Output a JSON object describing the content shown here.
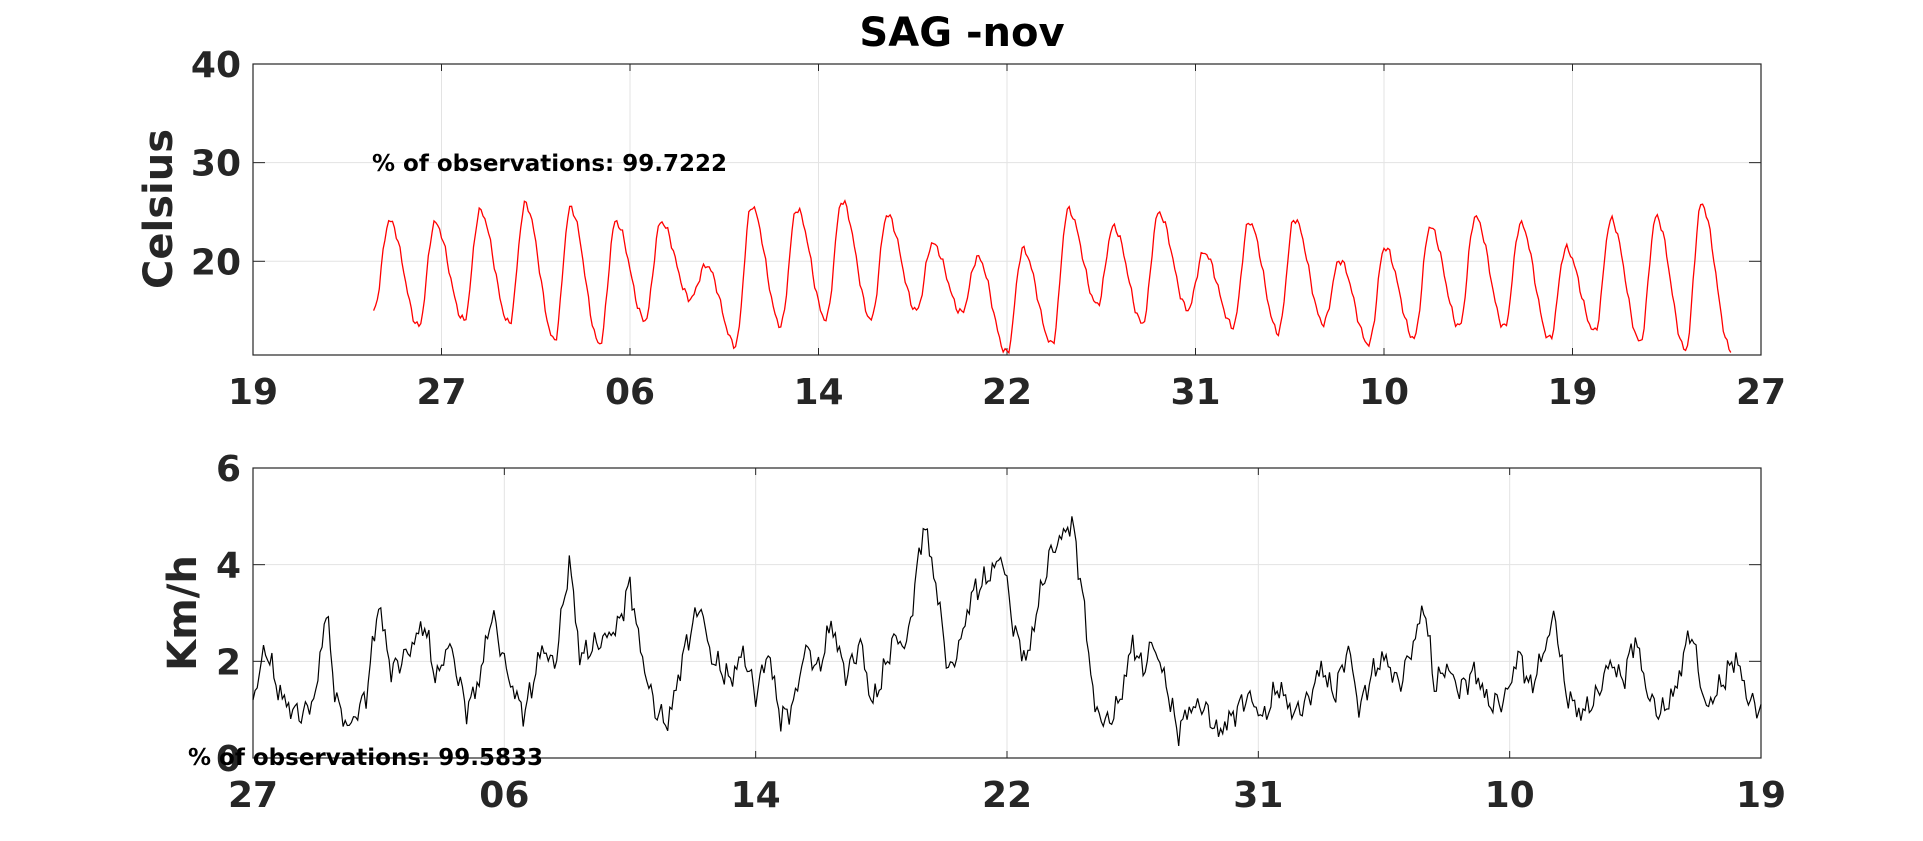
{
  "chart_data": [
    {
      "type": "line",
      "title": "SAG -nov",
      "ylabel": "Celsius",
      "xlabel": "",
      "xlim": [
        0,
        8
      ],
      "ylim": [
        10.5,
        40
      ],
      "x_ticks": [
        {
          "x": 0,
          "label": "19"
        },
        {
          "x": 1,
          "label": "27"
        },
        {
          "x": 2,
          "label": "06"
        },
        {
          "x": 3,
          "label": "14"
        },
        {
          "x": 4,
          "label": "22"
        },
        {
          "x": 5,
          "label": "31"
        },
        {
          "x": 6,
          "label": "10"
        },
        {
          "x": 7,
          "label": "19"
        },
        {
          "x": 8,
          "label": "27"
        }
      ],
      "y_ticks": [
        20,
        30,
        40
      ],
      "grid": true,
      "color": "#ff0000",
      "annotation": "% of observations: 99.7222",
      "series": [
        {
          "x_start": 0.64,
          "x_end": 7.84,
          "points_per_day": 24,
          "daily_max": [
            24.1,
            23.9,
            25.1,
            25.8,
            25.4,
            24.0,
            24.0,
            19.6,
            25.6,
            25.3,
            26.1,
            24.7,
            21.8,
            20.4,
            21.2,
            25.2,
            23.5,
            24.9,
            20.9,
            24.0,
            24.3,
            20.1,
            21.4,
            23.5,
            24.5,
            23.8,
            21.3,
            24.2,
            24.5,
            25.8
          ],
          "daily_min": [
            15.0,
            13.4,
            14.0,
            13.7,
            12.0,
            11.6,
            14.0,
            16.2,
            11.5,
            13.5,
            14.1,
            14.1,
            15.0,
            14.8,
            10.7,
            11.6,
            15.6,
            13.7,
            15.1,
            13.4,
            12.8,
            13.7,
            11.6,
            12.2,
            13.4,
            13.3,
            12.1,
            12.9,
            11.8,
            11.0
          ]
        }
      ]
    },
    {
      "type": "line",
      "title": "",
      "ylabel": "Km/h",
      "xlabel": "",
      "xlim": [
        0,
        6
      ],
      "ylim": [
        0,
        6
      ],
      "x_ticks": [
        {
          "x": 0,
          "label": "27"
        },
        {
          "x": 1,
          "label": "06"
        },
        {
          "x": 2,
          "label": "14"
        },
        {
          "x": 3,
          "label": "22"
        },
        {
          "x": 4,
          "label": "31"
        },
        {
          "x": 5,
          "label": "10"
        },
        {
          "x": 6,
          "label": "19"
        }
      ],
      "y_ticks": [
        0,
        2,
        4,
        6
      ],
      "grid": true,
      "color": "#000000",
      "annotation": "% of observations: 99.5833",
      "series": [
        {
          "x_start": 0,
          "x_end": 6,
          "points_per_unit": 120,
          "key_points": [
            [
              0,
              1.2
            ],
            [
              0.05,
              2.3
            ],
            [
              0.1,
              1.4
            ],
            [
              0.15,
              1.0
            ],
            [
              0.2,
              0.9
            ],
            [
              0.25,
              1.3
            ],
            [
              0.29,
              3.1
            ],
            [
              0.33,
              1.2
            ],
            [
              0.38,
              0.6
            ],
            [
              0.45,
              1.3
            ],
            [
              0.5,
              3.2
            ],
            [
              0.55,
              1.8
            ],
            [
              0.62,
              2.2
            ],
            [
              0.68,
              2.8
            ],
            [
              0.73,
              1.6
            ],
            [
              0.78,
              2.4
            ],
            [
              0.85,
              1.0
            ],
            [
              0.9,
              1.6
            ],
            [
              0.95,
              3.0
            ],
            [
              1.02,
              1.6
            ],
            [
              1.08,
              0.9
            ],
            [
              1.15,
              2.3
            ],
            [
              1.2,
              1.9
            ],
            [
              1.26,
              4.1
            ],
            [
              1.3,
              2.1
            ],
            [
              1.38,
              2.4
            ],
            [
              1.45,
              2.7
            ],
            [
              1.5,
              3.6
            ],
            [
              1.55,
              2.0
            ],
            [
              1.6,
              1.0
            ],
            [
              1.65,
              0.7
            ],
            [
              1.72,
              2.3
            ],
            [
              1.78,
              3.2
            ],
            [
              1.82,
              2.1
            ],
            [
              1.9,
              1.6
            ],
            [
              1.95,
              2.2
            ],
            [
              2.0,
              1.3
            ],
            [
              2.05,
              2.2
            ],
            [
              2.1,
              0.8
            ],
            [
              2.15,
              1.1
            ],
            [
              2.2,
              2.3
            ],
            [
              2.25,
              1.8
            ],
            [
              2.3,
              2.8
            ],
            [
              2.36,
              1.7
            ],
            [
              2.42,
              2.4
            ],
            [
              2.46,
              1.1
            ],
            [
              2.5,
              1.6
            ],
            [
              2.55,
              2.5
            ],
            [
              2.6,
              2.3
            ],
            [
              2.67,
              4.9
            ],
            [
              2.72,
              3.5
            ],
            [
              2.77,
              1.7
            ],
            [
              2.82,
              2.5
            ],
            [
              2.86,
              3.4
            ],
            [
              2.92,
              3.7
            ],
            [
              2.98,
              4.2
            ],
            [
              3.03,
              2.6
            ],
            [
              3.08,
              2.0
            ],
            [
              3.12,
              3.1
            ],
            [
              3.17,
              4.2
            ],
            [
              3.22,
              4.6
            ],
            [
              3.26,
              4.9
            ],
            [
              3.3,
              3.4
            ],
            [
              3.35,
              1.0
            ],
            [
              3.4,
              0.7
            ],
            [
              3.45,
              1.2
            ],
            [
              3.5,
              2.4
            ],
            [
              3.54,
              1.8
            ],
            [
              3.58,
              2.4
            ],
            [
              3.63,
              1.6
            ],
            [
              3.68,
              0.5
            ],
            [
              3.72,
              1.0
            ],
            [
              3.78,
              1.1
            ],
            [
              3.84,
              0.5
            ],
            [
              3.9,
              0.9
            ],
            [
              3.96,
              1.3
            ],
            [
              4.02,
              0.8
            ],
            [
              4.08,
              1.5
            ],
            [
              4.14,
              0.9
            ],
            [
              4.2,
              1.2
            ],
            [
              4.25,
              1.9
            ],
            [
              4.3,
              1.3
            ],
            [
              4.36,
              2.3
            ],
            [
              4.4,
              1.0
            ],
            [
              4.45,
              1.7
            ],
            [
              4.5,
              2.1
            ],
            [
              4.56,
              1.5
            ],
            [
              4.62,
              2.4
            ],
            [
              4.66,
              3.2
            ],
            [
              4.7,
              1.5
            ],
            [
              4.75,
              1.9
            ],
            [
              4.8,
              1.4
            ],
            [
              4.86,
              1.8
            ],
            [
              4.92,
              1.1
            ],
            [
              4.98,
              1.2
            ],
            [
              5.04,
              2.2
            ],
            [
              5.08,
              1.4
            ],
            [
              5.13,
              2.1
            ],
            [
              5.18,
              3.0
            ],
            [
              5.22,
              1.4
            ],
            [
              5.28,
              0.9
            ],
            [
              5.34,
              1.2
            ],
            [
              5.4,
              2.0
            ],
            [
              5.45,
              1.6
            ],
            [
              5.5,
              2.5
            ],
            [
              5.55,
              1.3
            ],
            [
              5.6,
              0.9
            ],
            [
              5.66,
              1.4
            ],
            [
              5.72,
              2.7
            ],
            [
              5.78,
              1.0
            ],
            [
              5.84,
              1.5
            ],
            [
              5.9,
              2.1
            ],
            [
              5.95,
              1.2
            ],
            [
              6.0,
              1.0
            ]
          ]
        }
      ]
    }
  ]
}
